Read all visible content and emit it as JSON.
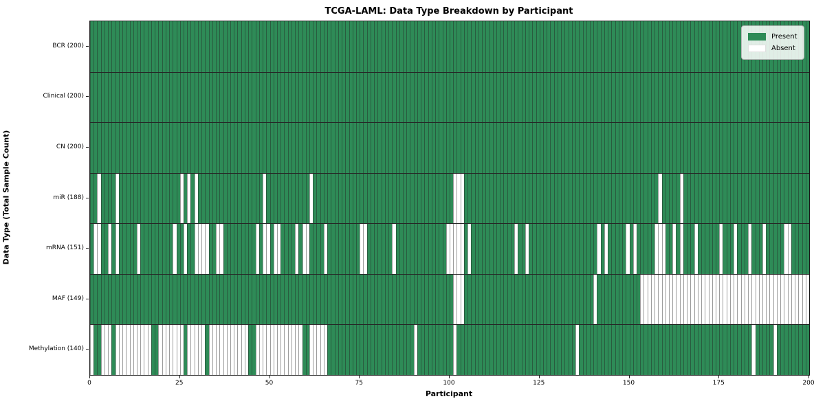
{
  "title": "TCGA-LAML: Data Type Breakdown by Participant",
  "xlabel": "Participant",
  "ylabel": "Data Type (Total Sample Count)",
  "legend": {
    "present_label": "Present",
    "absent_label": "Absent"
  },
  "colors": {
    "present": "#2e8b57",
    "absent": "#ffffff",
    "cell_edge": "rgba(35,35,35,0.45)",
    "plot_border": "#1a1a1a",
    "tick": "#222222"
  },
  "chart_data": {
    "type": "heatmap",
    "x_axis": {
      "label": "Participant",
      "min": 0,
      "max": 200,
      "ticks": [
        0,
        25,
        50,
        75,
        100,
        125,
        150,
        175,
        200
      ]
    },
    "n_participants": 200,
    "value_legend": {
      "present": "Present",
      "absent": "Absent"
    },
    "rows": [
      {
        "label": "BCR (200)",
        "data_type": "BCR",
        "present_count": 200,
        "absent_participants": []
      },
      {
        "label": "Clinical (200)",
        "data_type": "Clinical",
        "present_count": 200,
        "absent_participants": []
      },
      {
        "label": "CN (200)",
        "data_type": "CN",
        "present_count": 200,
        "absent_participants": []
      },
      {
        "label": "miR (188)",
        "data_type": "miR",
        "present_count": 188,
        "absent_participants": [
          2,
          7,
          25,
          27,
          29,
          48,
          61,
          101,
          102,
          103,
          158,
          164
        ]
      },
      {
        "label": "mRNA (151)",
        "data_type": "mRNA",
        "present_count": 151,
        "absent_participants": [
          1,
          2,
          5,
          7,
          13,
          23,
          26,
          29,
          30,
          31,
          32,
          35,
          36,
          46,
          48,
          49,
          51,
          52,
          57,
          59,
          60,
          65,
          75,
          76,
          84,
          99,
          100,
          101,
          102,
          103,
          105,
          118,
          121,
          141,
          143,
          149,
          151,
          157,
          158,
          159,
          162,
          164,
          168,
          175,
          179,
          183,
          187,
          193,
          194
        ]
      },
      {
        "label": "MAF (149)",
        "data_type": "MAF",
        "present_count": 149,
        "absent_participants": [
          101,
          102,
          103,
          140,
          153,
          154,
          155,
          156,
          157,
          158,
          159,
          160,
          161,
          162,
          163,
          164,
          165,
          166,
          167,
          168,
          169,
          170,
          171,
          172,
          173,
          174,
          175,
          176,
          177,
          178,
          179,
          180,
          181,
          182,
          183,
          184,
          185,
          186,
          187,
          188,
          189,
          190,
          191,
          192,
          193,
          194,
          195,
          196,
          197,
          198,
          199
        ]
      },
      {
        "label": "Methylation (140)",
        "data_type": "Methylation",
        "present_count": 140,
        "absent_participants": [
          0,
          3,
          4,
          5,
          7,
          8,
          9,
          10,
          11,
          12,
          13,
          14,
          15,
          16,
          19,
          20,
          21,
          22,
          23,
          24,
          25,
          27,
          28,
          29,
          30,
          31,
          33,
          34,
          35,
          36,
          37,
          38,
          39,
          40,
          41,
          42,
          43,
          46,
          47,
          48,
          49,
          50,
          51,
          52,
          53,
          54,
          55,
          56,
          57,
          58,
          61,
          62,
          63,
          64,
          65,
          90,
          101,
          135,
          184,
          190
        ]
      }
    ]
  }
}
